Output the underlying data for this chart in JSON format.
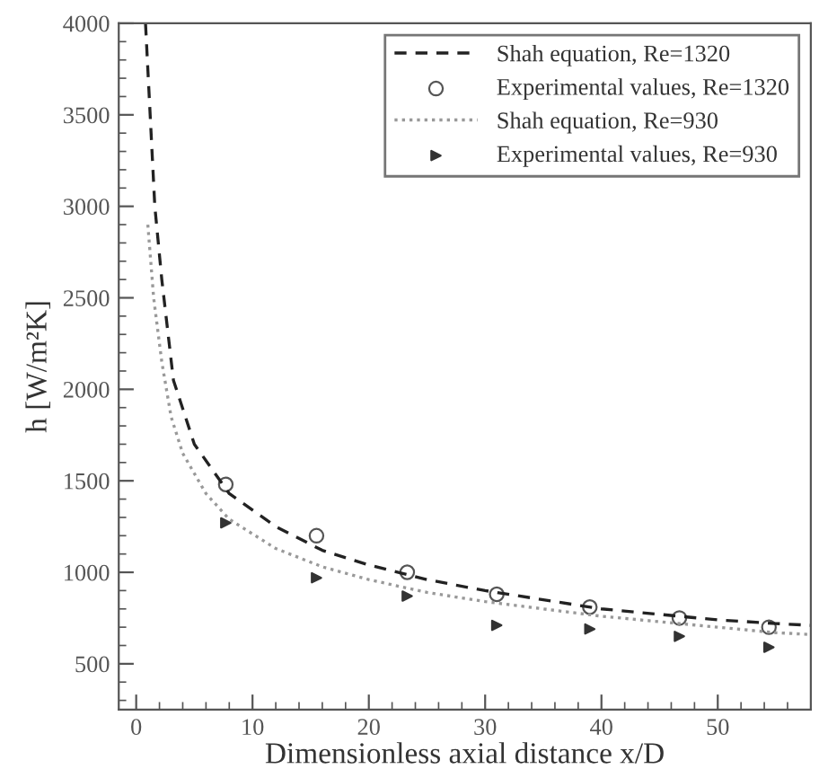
{
  "chart_data": {
    "type": "line",
    "xlabel": "Dimensionless axial distance x/D",
    "ylabel": "h [W/m²K]",
    "xlim": [
      -1.5,
      58
    ],
    "ylim": [
      250,
      4000
    ],
    "xticks": [
      0,
      10,
      20,
      30,
      40,
      50
    ],
    "yticks": [
      500,
      1000,
      1500,
      2000,
      2500,
      3000,
      3500,
      4000
    ],
    "grid": false,
    "legend": "top right",
    "series": [
      {
        "name": "Shah equation, Re=1320",
        "line_style": "dashed",
        "marker": "none",
        "color": "#222222",
        "x": [
          0.8,
          1.2,
          1.6,
          2.2,
          3.2,
          5,
          8,
          12,
          16,
          20,
          25,
          30,
          35,
          40,
          45,
          50,
          55,
          58
        ],
        "values": [
          4000,
          3500,
          3000,
          2600,
          2050,
          1700,
          1430,
          1250,
          1120,
          1040,
          960,
          900,
          850,
          800,
          770,
          740,
          720,
          710
        ]
      },
      {
        "name": "Experimental values, Re=1320",
        "type": "scatter",
        "marker": "circle",
        "color": "#555555",
        "x": [
          7.7,
          15.5,
          23.3,
          31,
          39,
          46.7,
          54.4
        ],
        "values": [
          1480,
          1200,
          1000,
          880,
          810,
          750,
          700
        ]
      },
      {
        "name": "Shah equation, Re=930",
        "line_style": "dotted",
        "marker": "none",
        "color": "#999999",
        "x": [
          1.0,
          1.5,
          2.2,
          3,
          4,
          6,
          8,
          12,
          16,
          20,
          25,
          30,
          35,
          40,
          45,
          50,
          55,
          58
        ],
        "values": [
          2900,
          2500,
          2150,
          1850,
          1650,
          1430,
          1290,
          1130,
          1030,
          960,
          890,
          840,
          800,
          760,
          730,
          700,
          670,
          660
        ]
      },
      {
        "name": "Experimental values, Re=930",
        "type": "scatter",
        "marker": "triangle",
        "color": "#333333",
        "x": [
          7.7,
          15.5,
          23.3,
          31,
          39,
          46.7,
          54.4
        ],
        "values": [
          1270,
          970,
          870,
          710,
          690,
          650,
          590
        ]
      }
    ]
  }
}
